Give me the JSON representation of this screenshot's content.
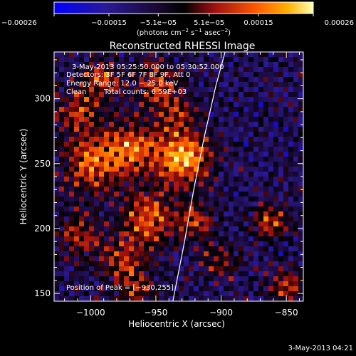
{
  "chart_data": {
    "type": "heatmap",
    "title": "Reconstructed RHESSI Image",
    "xlabel": "Heliocentric X (arcsec)",
    "ylabel": "Heliocentric Y (arcsec)",
    "xlim": [
      -1028,
      -837
    ],
    "ylim": [
      144,
      336
    ],
    "x_ticks": [
      -1000,
      -950,
      -900,
      -850
    ],
    "x_tick_labels": [
      "−1000",
      "−950",
      "−900",
      "−850"
    ],
    "y_ticks": [
      150,
      200,
      250,
      300
    ],
    "y_tick_labels": [
      "150",
      "200",
      "250",
      "300"
    ],
    "colorbar": {
      "range": [
        -0.00026,
        0.00026
      ],
      "ticks": [
        -0.00026,
        -0.00015,
        -5.1e-05,
        5.1e-05,
        0.00015,
        0.00026
      ],
      "tick_labels": [
        "−0.00026",
        "−0.00015",
        "−5.1e−05",
        "5.1e−05",
        "0.00015",
        "0.00026"
      ],
      "units_text": "(photons cm",
      "units_exp1": "−2",
      "units_mid": " s",
      "units_exp2": "−1",
      "units_end": " asec",
      "units_exp3": "−2",
      "units_close": ")"
    },
    "annotations": {
      "time_range": "3-May-2013 05:25:50.000 to 05:30:52.000",
      "detectors": "Detectors: 3F 5F 6F 7F 8F 9F, Att 0",
      "energy": "Energy Range: 12.0 − 25.0 keV",
      "clean": "Clean",
      "total_counts": "Total counts: 6.59E+03",
      "peak": "Position of Peak = [−930,255]"
    },
    "limb_curve": [
      [
        -937,
        144
      ],
      [
        -928,
        190
      ],
      [
        -921,
        230
      ],
      [
        -913,
        270
      ],
      [
        -904,
        310
      ],
      [
        -897,
        336
      ]
    ],
    "peak_position": [
      -930,
      255
    ],
    "bright_sources": [
      {
        "x": -930,
        "y": 255,
        "amp": 1.0,
        "sigma": 15
      },
      {
        "x": -970,
        "y": 262,
        "amp": 0.75,
        "sigma": 14
      },
      {
        "x": -1000,
        "y": 250,
        "amp": 0.7,
        "sigma": 15
      },
      {
        "x": -1010,
        "y": 290,
        "amp": 0.55,
        "sigma": 12
      },
      {
        "x": -990,
        "y": 315,
        "amp": 0.65,
        "sigma": 10
      },
      {
        "x": -950,
        "y": 312,
        "amp": 0.55,
        "sigma": 12
      },
      {
        "x": -955,
        "y": 208,
        "amp": 0.75,
        "sigma": 14
      },
      {
        "x": -920,
        "y": 205,
        "amp": 0.55,
        "sigma": 10
      },
      {
        "x": -1010,
        "y": 195,
        "amp": 0.5,
        "sigma": 12
      },
      {
        "x": -975,
        "y": 175,
        "amp": 0.55,
        "sigma": 12
      },
      {
        "x": -900,
        "y": 175,
        "amp": 0.4,
        "sigma": 10
      },
      {
        "x": -862,
        "y": 205,
        "amp": 0.6,
        "sigma": 9
      },
      {
        "x": -850,
        "y": 155,
        "amp": 0.55,
        "sigma": 9
      },
      {
        "x": -965,
        "y": 152,
        "amp": 0.45,
        "sigma": 10
      },
      {
        "x": -935,
        "y": 290,
        "amp": 0.45,
        "sigma": 10
      }
    ],
    "footer_date": "3-May-2013 04:21"
  }
}
